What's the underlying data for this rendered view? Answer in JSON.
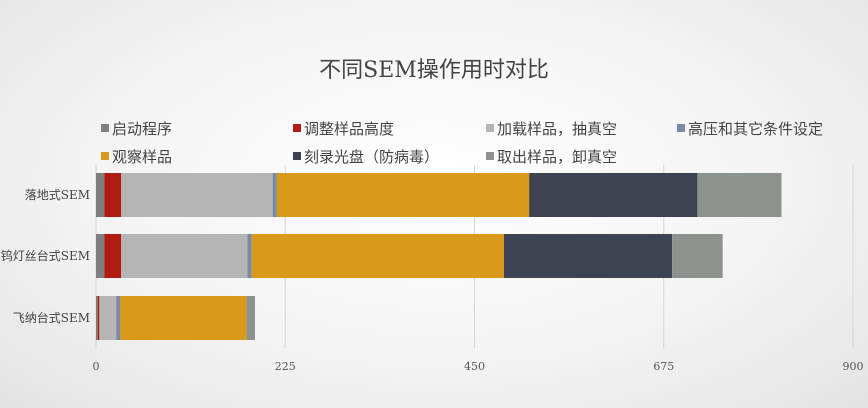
{
  "chart_data": {
    "type": "bar",
    "orientation": "horizontal",
    "stacked": true,
    "title": "不同SEM操作用时对比",
    "categories": [
      "落地式SEM",
      "钨灯丝台式SEM",
      "飞纳台式SEM"
    ],
    "series": [
      {
        "name": "启动程序",
        "color": "#7f7f7f",
        "values": [
          10,
          10,
          2
        ]
      },
      {
        "name": "调整样品高度",
        "color": "#b01c12",
        "values": [
          20,
          20,
          2
        ]
      },
      {
        "name": "加载样品，抽真空",
        "color": "#b5b5b5",
        "values": [
          180,
          150,
          20
        ]
      },
      {
        "name": "高压和其它条件设定",
        "color": "#7b8aa3",
        "values": [
          5,
          5,
          5
        ]
      },
      {
        "name": "观察样品",
        "color": "#d99a1b",
        "values": [
          300,
          300,
          150
        ]
      },
      {
        "name": "刻录光盘（防病毒）",
        "color": "#3d4350",
        "values": [
          200,
          200,
          0
        ]
      },
      {
        "name": "取出样品，卸真空",
        "color": "#8e928e",
        "values": [
          100,
          60,
          10
        ]
      }
    ],
    "xlim": [
      0,
      900
    ],
    "xticks": [
      "0",
      "225",
      "450",
      "675",
      "900"
    ],
    "grid": true,
    "legend_position": "top"
  }
}
